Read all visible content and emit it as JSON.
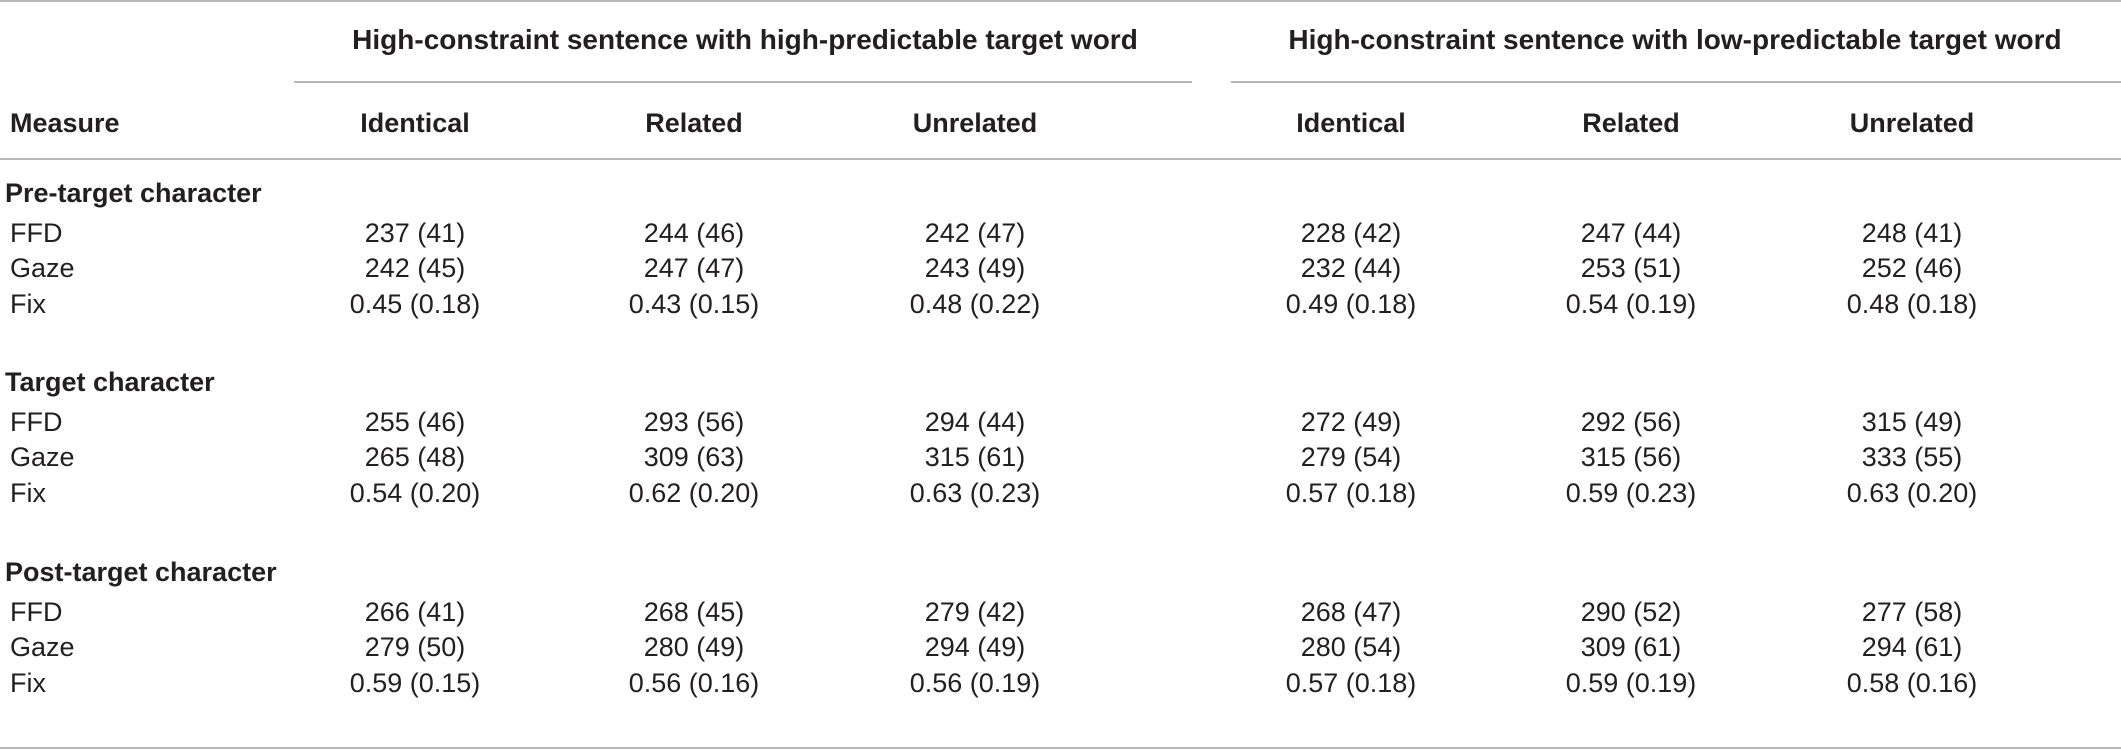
{
  "table": {
    "group_headers": [
      "High-constraint sentence with high-predictable target word",
      "High-constraint sentence with low-predictable target word"
    ],
    "measure_label": "Measure",
    "columns": [
      "Identical",
      "Related",
      "Unrelated",
      "Identical",
      "Related",
      "Unrelated"
    ],
    "sections": [
      {
        "title": "Pre-target character",
        "rows": [
          {
            "measure": "FFD",
            "values": [
              "237 (41)",
              "244 (46)",
              "242 (47)",
              "228 (42)",
              "247 (44)",
              "248 (41)"
            ]
          },
          {
            "measure": "Gaze",
            "values": [
              "242 (45)",
              "247 (47)",
              "243 (49)",
              "232 (44)",
              "253 (51)",
              "252 (46)"
            ]
          },
          {
            "measure": "Fix",
            "values": [
              "0.45 (0.18)",
              "0.43 (0.15)",
              "0.48 (0.22)",
              "0.49 (0.18)",
              "0.54 (0.19)",
              "0.48 (0.18)"
            ]
          }
        ]
      },
      {
        "title": "Target character",
        "rows": [
          {
            "measure": "FFD",
            "values": [
              "255 (46)",
              "293 (56)",
              "294 (44)",
              "272 (49)",
              "292 (56)",
              "315 (49)"
            ]
          },
          {
            "measure": "Gaze",
            "values": [
              "265 (48)",
              "309 (63)",
              "315 (61)",
              "279 (54)",
              "315 (56)",
              "333 (55)"
            ]
          },
          {
            "measure": "Fix",
            "values": [
              "0.54 (0.20)",
              "0.62 (0.20)",
              "0.63 (0.23)",
              "0.57 (0.18)",
              "0.59 (0.23)",
              "0.63 (0.20)"
            ]
          }
        ]
      },
      {
        "title": "Post-target character",
        "rows": [
          {
            "measure": "FFD",
            "values": [
              "266 (41)",
              "268 (45)",
              "279 (42)",
              "268 (47)",
              "290 (52)",
              "277 (58)"
            ]
          },
          {
            "measure": "Gaze",
            "values": [
              "279 (50)",
              "280 (49)",
              "294 (49)",
              "280 (54)",
              "309 (61)",
              "294 (61)"
            ]
          },
          {
            "measure": "Fix",
            "values": [
              "0.59 (0.15)",
              "0.56 (0.16)",
              "0.56 (0.19)",
              "0.57 (0.18)",
              "0.59 (0.19)",
              "0.58 (0.16)"
            ]
          }
        ]
      }
    ]
  }
}
